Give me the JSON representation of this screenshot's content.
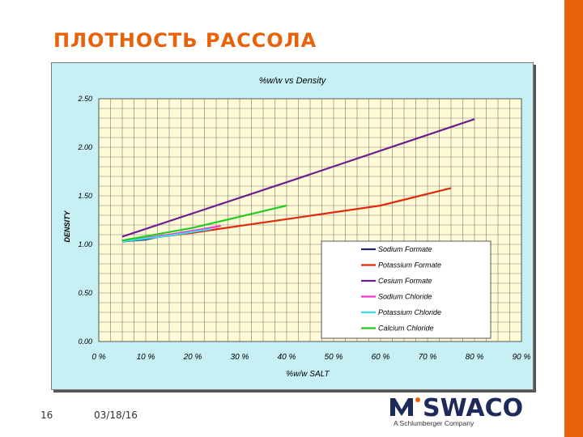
{
  "slide": {
    "title": "ПЛОТНОСТЬ РАССОЛА",
    "page_number": "16",
    "date": "03/18/16",
    "accent_color": "#e8620a"
  },
  "logo": {
    "text": "MiSWACO",
    "subtitle": "A Schlumberger Company",
    "color": "#1d2a5a"
  },
  "chart_data": {
    "type": "line",
    "title": "%w/w vs Density",
    "xlabel": "%w/w SALT",
    "ylabel": "DENSITY",
    "xlim": [
      0,
      90
    ],
    "ylim": [
      0,
      2.5
    ],
    "x_ticks": [
      "0 %",
      "10 %",
      "20 %",
      "30 %",
      "40 %",
      "50 %",
      "60 %",
      "70 %",
      "80 %",
      "90 %"
    ],
    "y_ticks": [
      "0.00",
      "0.50",
      "1.00",
      "1.50",
      "2.00",
      "2.50"
    ],
    "grid": true,
    "legend_position": "bottom-right",
    "background_color": "#c6f0f4",
    "plot_background": "#fffbd6",
    "grid_color": "#7a7a7a",
    "series": [
      {
        "name": "Sodium Formate",
        "color": "#1f2a6b",
        "points": [
          [
            5,
            1.03
          ],
          [
            10,
            1.05
          ],
          [
            15,
            1.1
          ]
        ]
      },
      {
        "name": "Potassium Formate",
        "color": "#e02a10",
        "points": [
          [
            5,
            1.03
          ],
          [
            20,
            1.12
          ],
          [
            40,
            1.26
          ],
          [
            60,
            1.4
          ],
          [
            75,
            1.58
          ]
        ]
      },
      {
        "name": "Cesium Formate",
        "color": "#6a1f8c",
        "points": [
          [
            5,
            1.08
          ],
          [
            40,
            1.64
          ],
          [
            80,
            2.29
          ]
        ]
      },
      {
        "name": "Sodium Chloride",
        "color": "#ff33cc",
        "points": [
          [
            5,
            1.03
          ],
          [
            15,
            1.1
          ],
          [
            26,
            1.19
          ]
        ]
      },
      {
        "name": "Potassium Chloride",
        "color": "#33e0f0",
        "points": [
          [
            5,
            1.03
          ],
          [
            15,
            1.09
          ],
          [
            24,
            1.16
          ]
        ]
      },
      {
        "name": "Calcium Chloride",
        "color": "#22cc22",
        "points": [
          [
            5,
            1.04
          ],
          [
            20,
            1.17
          ],
          [
            40,
            1.4
          ]
        ]
      }
    ]
  }
}
